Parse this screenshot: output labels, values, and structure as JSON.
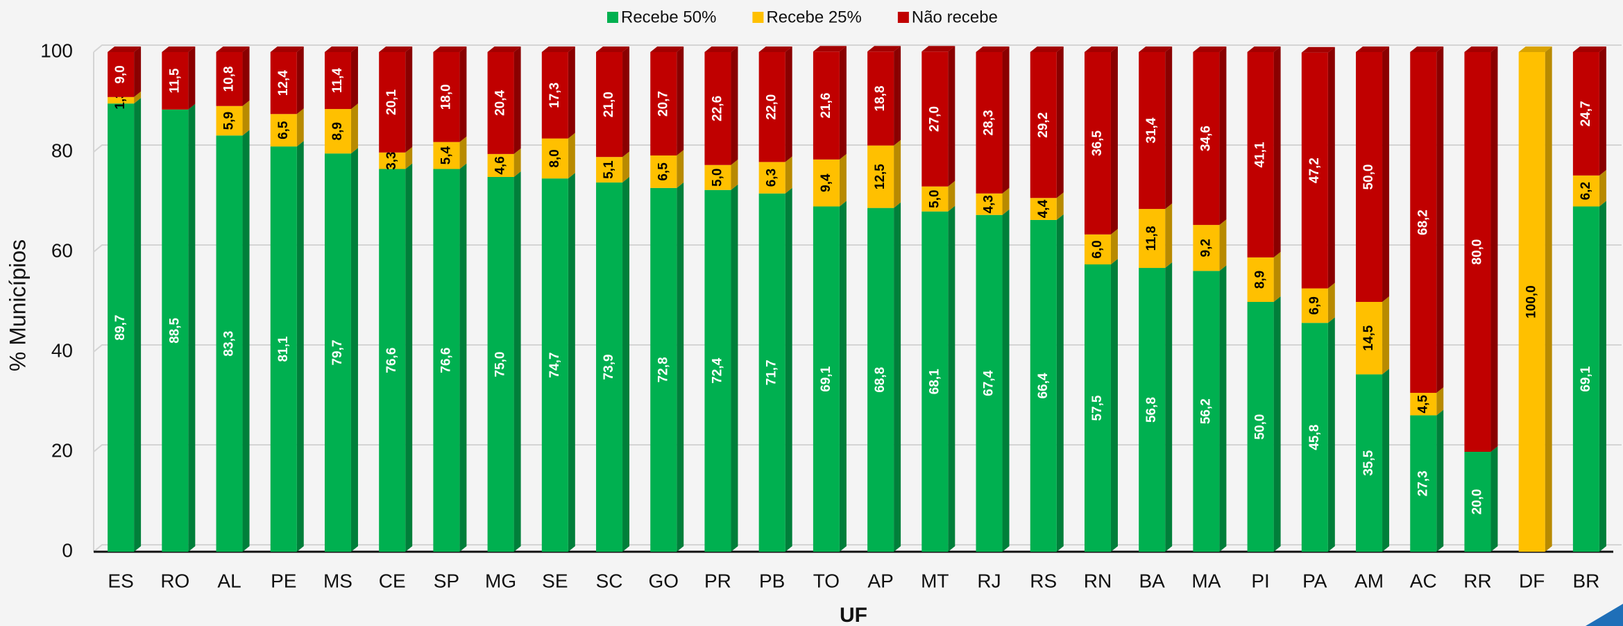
{
  "chart_data": {
    "type": "bar",
    "stacked": true,
    "x_label": "UF",
    "y_label": "% Municípios",
    "categories": [
      "ES",
      "RO",
      "AL",
      "PE",
      "MS",
      "CE",
      "SP",
      "MG",
      "SE",
      "SC",
      "GO",
      "PR",
      "PB",
      "TO",
      "AP",
      "MT",
      "RJ",
      "RS",
      "RN",
      "BA",
      "MA",
      "PI",
      "PA",
      "AM",
      "AC",
      "RR",
      "DF",
      "BR"
    ],
    "series": [
      {
        "name": "Recebe 50%",
        "color": "#00b050",
        "label_color": "#ffffff",
        "values": [
          89.7,
          88.5,
          83.3,
          81.1,
          79.7,
          76.6,
          76.6,
          75.0,
          74.7,
          73.9,
          72.8,
          72.4,
          71.7,
          69.1,
          68.8,
          68.1,
          67.4,
          66.4,
          57.5,
          56.8,
          56.2,
          50.0,
          45.8,
          35.5,
          27.3,
          20.0,
          null,
          69.1
        ],
        "value_labels": [
          "89,7",
          "88,5",
          "83,3",
          "81,1",
          "79,7",
          "76,6",
          "76,6",
          "75,0",
          "74,7",
          "73,9",
          "72,8",
          "72,4",
          "71,7",
          "69,1",
          "68,8",
          "68,1",
          "67,4",
          "66,4",
          "57,5",
          "56,8",
          "56,2",
          "50,0",
          "45,8",
          "35,5",
          "27,3",
          "20,0",
          null,
          "69,1"
        ]
      },
      {
        "name": "Recebe 25%",
        "color": "#ffc000",
        "label_color": "#000000",
        "values": [
          1.3,
          null,
          5.9,
          6.5,
          8.9,
          3.3,
          5.4,
          4.6,
          8.0,
          5.1,
          6.5,
          5.0,
          6.3,
          9.4,
          12.5,
          5.0,
          4.3,
          4.4,
          6.0,
          11.8,
          9.2,
          8.9,
          6.9,
          14.5,
          4.5,
          null,
          100.0,
          6.2
        ],
        "value_labels": [
          "1,3",
          null,
          "5,9",
          "6,5",
          "8,9",
          "3,3",
          "5,4",
          "4,6",
          "8,0",
          "5,1",
          "6,5",
          "5,0",
          "6,3",
          "9,4",
          "12,5",
          "5,0",
          "4,3",
          "4,4",
          "6,0",
          "11,8",
          "9,2",
          "8,9",
          "6,9",
          "14,5",
          "4,5",
          null,
          "100,0",
          "6,2"
        ]
      },
      {
        "name": "Não recebe",
        "color": "#c00000",
        "label_color": "#ffffff",
        "values": [
          9.0,
          11.5,
          10.8,
          12.4,
          11.4,
          20.1,
          18.0,
          20.4,
          17.3,
          21.0,
          20.7,
          22.6,
          22.0,
          21.6,
          18.8,
          27.0,
          28.3,
          29.2,
          36.5,
          31.4,
          34.6,
          41.1,
          47.2,
          50.0,
          68.2,
          80.0,
          null,
          24.7
        ],
        "value_labels": [
          "9,0",
          "11,5",
          "10,8",
          "12,4",
          "11,4",
          "20,1",
          "18,0",
          "20,4",
          "17,3",
          "21,0",
          "20,7",
          "22,6",
          "22,0",
          "21,6",
          "18,8",
          "27,0",
          "28,3",
          "29,2",
          "36,5",
          "31,4",
          "34,6",
          "41,1",
          "47,2",
          "50,0",
          "68,2",
          "80,0",
          null,
          "24,7"
        ]
      }
    ],
    "ylim": [
      0,
      100
    ],
    "yticks": [
      0,
      20,
      40,
      60,
      80,
      100
    ],
    "grid": true,
    "legend": "top"
  }
}
